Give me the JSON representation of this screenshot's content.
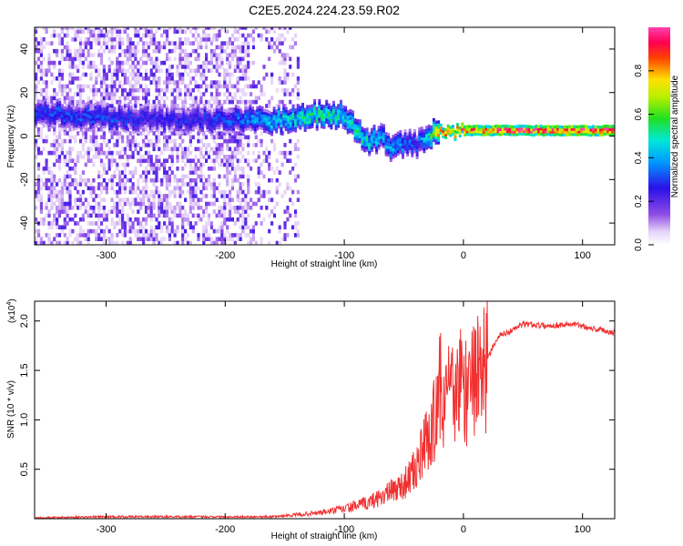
{
  "title": "C2E5.2024.224.23.59.R02",
  "chart_data": [
    {
      "type": "heatmap",
      "xlabel": "Height of straight line (km)",
      "ylabel": "Frequency (Hz)",
      "xlim": [
        -360,
        127
      ],
      "ylim": [
        -50,
        50
      ],
      "xticks": [
        -300,
        -200,
        -100,
        0,
        100
      ],
      "yticks": [
        -40,
        -20,
        0,
        20,
        40
      ],
      "colorbar": {
        "label": "Normalized spectral amplitude",
        "range": [
          0,
          1
        ],
        "ticks": [
          "0.0",
          "0.2",
          "0.4",
          "0.6",
          "0.8"
        ],
        "colormap": "white-purple-blue-cyan-green-yellow-red-magenta"
      },
      "ridge": {
        "description_points_x": [
          -350,
          -300,
          -250,
          -200,
          -150,
          -130,
          -110,
          -100,
          -90,
          -80,
          -70,
          -60,
          -50,
          -40,
          -30,
          -20,
          0,
          50,
          100,
          127
        ],
        "center_freq_hz": [
          10,
          8,
          7,
          7,
          7,
          9,
          10,
          8,
          2,
          -3,
          -1,
          -6,
          -3,
          -5,
          0,
          1,
          2,
          2,
          2,
          2
        ],
        "peak_amplitude": [
          0.3,
          0.3,
          0.25,
          0.3,
          0.45,
          0.5,
          0.5,
          0.45,
          0.5,
          0.45,
          0.4,
          0.4,
          0.35,
          0.3,
          0.5,
          0.8,
          0.85,
          0.9,
          0.9,
          0.9
        ]
      }
    },
    {
      "type": "line",
      "xlabel": "Height of straight line (km)",
      "ylabel": "SNR (10 * v/v)",
      "yscale_label": "(x10",
      "yscale_exp": "4",
      "xlim": [
        -360,
        127
      ],
      "ylim": [
        0,
        2.2
      ],
      "xticks": [
        -300,
        -200,
        -100,
        0,
        100
      ],
      "yticks": [
        "0.5",
        "1.0",
        "1.5",
        "2.0"
      ],
      "color": "#f03030",
      "series": [
        {
          "x": [
            -360,
            -300,
            -200,
            -160,
            -140,
            -120,
            -100,
            -80,
            -70,
            -60,
            -50,
            -40,
            -30,
            -25,
            -20,
            -15,
            -10,
            -5,
            0,
            5,
            10,
            15,
            20,
            25,
            30,
            40,
            50,
            60,
            70,
            80,
            90,
            100,
            110,
            120,
            127
          ],
          "values": [
            0.01,
            0.02,
            0.02,
            0.02,
            0.04,
            0.06,
            0.1,
            0.16,
            0.22,
            0.28,
            0.35,
            0.5,
            0.8,
            1.0,
            1.05,
            1.3,
            1.2,
            1.25,
            1.3,
            1.35,
            1.4,
            1.45,
            1.6,
            1.75,
            1.85,
            1.9,
            1.97,
            1.96,
            1.95,
            1.96,
            1.97,
            1.95,
            1.92,
            1.9,
            1.88
          ]
        }
      ]
    }
  ]
}
